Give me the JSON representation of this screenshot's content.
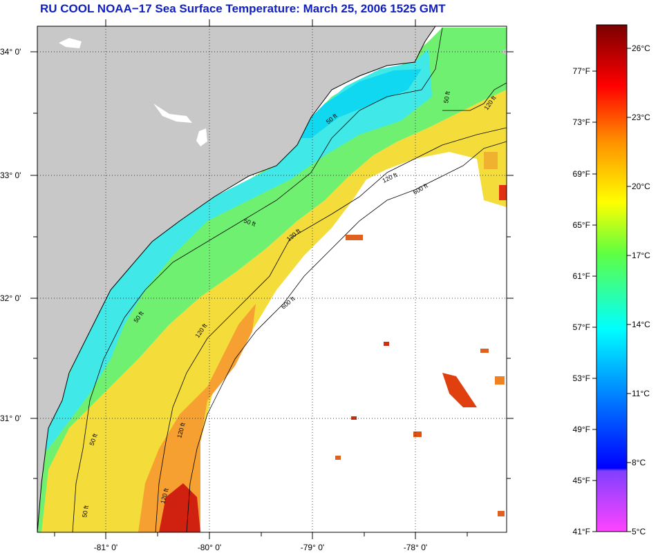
{
  "title": "RU COOL  NOAA−17  Sea Surface Temperature:  March 25, 2006 1525 GMT",
  "map": {
    "lat_labels": [
      "34° 0'",
      "33° 0'",
      "32° 0'",
      "31° 0'"
    ],
    "lon_labels": [
      "-81° 0'",
      "-80° 0'",
      "-79° 0'",
      "-78° 0'"
    ],
    "contour_labels": {
      "c50": "50 ft",
      "c120": "120 ft",
      "c600": "600 ft"
    },
    "colors": {
      "land": "#c8c8c8",
      "cloud": "#ffffff"
    }
  },
  "colorbar": {
    "fahrenheit_labels": [
      "77°F",
      "73°F",
      "69°F",
      "65°F",
      "61°F",
      "57°F",
      "53°F",
      "49°F",
      "45°F",
      "41°F"
    ],
    "celsius_labels": [
      "26°C",
      "23°C",
      "20°C",
      "17°C",
      "14°C",
      "11°C",
      "8°C",
      "5°C"
    ],
    "colors": [
      "#7a0000",
      "#ff0000",
      "#ff8000",
      "#ffff00",
      "#60ff40",
      "#00ffff",
      "#0080ff",
      "#0000ff",
      "#ff40ff"
    ]
  }
}
